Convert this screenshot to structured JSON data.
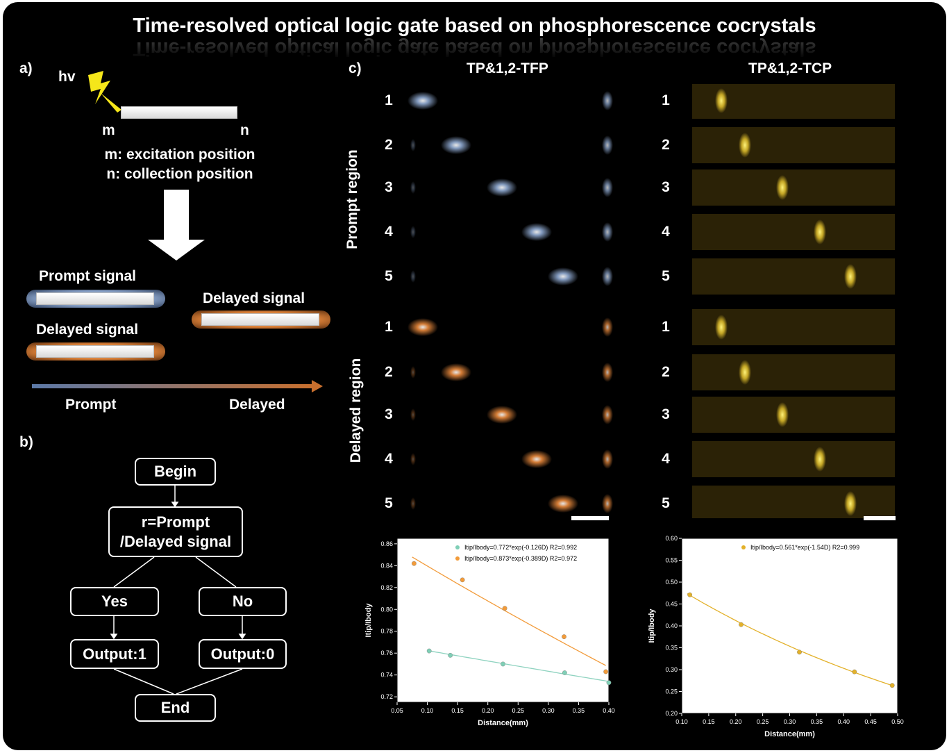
{
  "title": "Time-resolved optical logic gate based on phosphorescence cocrystals",
  "panel_a": {
    "label": "a)",
    "hv": "hv",
    "m": "m",
    "n": "n",
    "legend_m": "m: excitation position",
    "legend_n": "n: collection position",
    "prompt_signal": "Prompt signal",
    "delayed_signal_left": "Delayed signal",
    "delayed_signal_right": "Delayed signal",
    "axis_start": "Prompt",
    "axis_end": "Delayed"
  },
  "panel_b": {
    "label": "b)",
    "begin": "Begin",
    "condition_line1": "r=Prompt",
    "condition_line2": "/Delayed signal",
    "yes": "Yes",
    "no": "No",
    "output1": "Output:1",
    "output0": "Output:0",
    "end": "End"
  },
  "panel_c": {
    "label": "c)",
    "tfp_title": "TP&1,2-TFP",
    "tcp_title": "TP&1,2-TCP",
    "prompt_region": "Prompt region",
    "delayed_region": "Delayed region",
    "row_numbers": [
      "1",
      "2",
      "3",
      "4",
      "5"
    ],
    "colors": {
      "prompt_blue": "#8aa3c9",
      "delayed_orange": "#e0843a",
      "tcp_yellow": "#d6b62a",
      "fit_teal": "#7fcfb6",
      "fit_orange": "#f29b3a",
      "fit_yellow": "#e3b12a"
    }
  },
  "chart_data": [
    {
      "type": "scatter",
      "title": "",
      "xlabel": "Distance(mm)",
      "ylabel": "Itip/Ibody",
      "xlim": [
        0.05,
        0.4
      ],
      "ylim": [
        0.715,
        0.865
      ],
      "xticks": [
        "0.05",
        "0.10",
        "0.15",
        "0.20",
        "0.25",
        "0.30",
        "0.35",
        "0.40"
      ],
      "yticks": [
        "0.72",
        "0.74",
        "0.76",
        "0.78",
        "0.80",
        "0.82",
        "0.84",
        "0.86"
      ],
      "legend_position": "top-right",
      "series": [
        {
          "name": "Itip/Ibody=0.772*exp(-0.126D) R2=0.992",
          "color": "#7fcfb6",
          "line_color": "#8fd3c0",
          "x": [
            0.103,
            0.138,
            0.225,
            0.327,
            0.4
          ],
          "y": [
            0.762,
            0.758,
            0.75,
            0.742,
            0.733
          ],
          "fit": {
            "a": 0.772,
            "b": -0.126,
            "r2": 0.992,
            "x_range": [
              0.1,
              0.4
            ]
          }
        },
        {
          "name": "Itip/Ibody=0.873*exp(-0.389D) R2=0.972",
          "color": "#f29b3a",
          "line_color": "#f29b3a",
          "x": [
            0.078,
            0.158,
            0.228,
            0.326,
            0.395
          ],
          "y": [
            0.842,
            0.827,
            0.801,
            0.775,
            0.743
          ],
          "fit": {
            "a": 0.873,
            "b": -0.389,
            "r2": 0.972,
            "x_range": [
              0.075,
              0.395
            ]
          }
        }
      ]
    },
    {
      "type": "scatter",
      "title": "",
      "xlabel": "Distance(mm)",
      "ylabel": "Itip/Ibody",
      "xlim": [
        0.1,
        0.5
      ],
      "ylim": [
        0.2,
        0.6
      ],
      "xticks": [
        "0.10",
        "0.15",
        "0.20",
        "0.25",
        "0.30",
        "0.35",
        "0.40",
        "0.45",
        "0.50"
      ],
      "yticks": [
        "0.20",
        "0.25",
        "0.30",
        "0.35",
        "0.40",
        "0.45",
        "0.50",
        "0.55",
        "0.60"
      ],
      "legend_position": "top-right",
      "series": [
        {
          "name": "Itip/Ibody=0.561*exp(-1.54D) R2=0.999",
          "color": "#e3b12a",
          "line_color": "#e3b12a",
          "x": [
            0.115,
            0.21,
            0.318,
            0.42,
            0.49
          ],
          "y": [
            0.471,
            0.403,
            0.34,
            0.295,
            0.264
          ],
          "fit": {
            "a": 0.561,
            "b": -1.54,
            "r2": 0.999,
            "x_range": [
              0.11,
              0.49
            ]
          }
        }
      ]
    }
  ]
}
